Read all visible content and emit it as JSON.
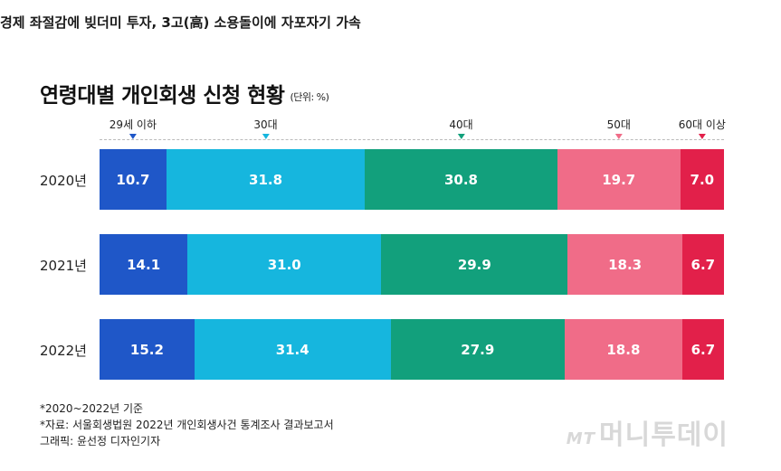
{
  "headline": "경제 좌절감에 빚더미 투자, 3고(高) 소용돌이에 자포자기 가속",
  "chart_data": {
    "type": "bar",
    "orientation": "horizontal-stacked",
    "title": "연령대별 개인회생 신청 현황",
    "unit": "(단위: %)",
    "categories": [
      "2020년",
      "2021년",
      "2022년"
    ],
    "series": [
      {
        "name": "29세 이하",
        "color": "#1f57c8",
        "values": [
          10.7,
          14.1,
          15.2
        ]
      },
      {
        "name": "30대",
        "color": "#16b6de",
        "values": [
          31.8,
          31.0,
          31.4
        ]
      },
      {
        "name": "40대",
        "color": "#12a07c",
        "values": [
          30.8,
          29.9,
          27.9
        ]
      },
      {
        "name": "50대",
        "color": "#f06c88",
        "values": [
          19.7,
          18.3,
          18.8
        ]
      },
      {
        "name": "60대 이상",
        "color": "#e2204a",
        "values": [
          7.0,
          6.7,
          6.7
        ]
      }
    ],
    "value_labels": [
      [
        "10.7",
        "31.8",
        "30.8",
        "19.7",
        "7.0"
      ],
      [
        "14.1",
        "31.0",
        "29.9",
        "18.3",
        "6.7"
      ],
      [
        "15.2",
        "31.4",
        "27.9",
        "18.8",
        "6.7"
      ]
    ]
  },
  "notes": [
    "*2020~2022년 기준",
    "*자료: 서울회생법원 2022년 개인회생사건 통계조사 결과보고서",
    "그래픽: 윤선정 디자인기자"
  ],
  "logo": {
    "mt": "MT",
    "brand": "머니투데이"
  },
  "legend_tri_colors": [
    "#1f57c8",
    "#16b6de",
    "#12a07c",
    "#f06c88",
    "#e2204a"
  ]
}
